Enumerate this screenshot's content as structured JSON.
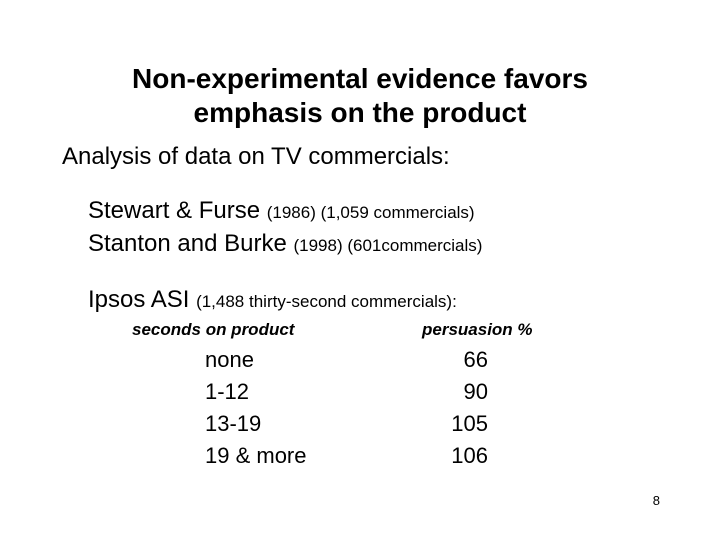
{
  "title": {
    "line1": "Non-experimental evidence favors",
    "line2": "emphasis on the product"
  },
  "subtitle": "Analysis of data on TV commercials:",
  "studies": [
    {
      "name": "Stewart & Furse ",
      "detail": "(1986) (1,059 commercials)"
    },
    {
      "name": "Stanton and Burke ",
      "detail": "(1998) (601commercials)"
    },
    {
      "name": "Ipsos ASI ",
      "detail": "(1,488 thirty-second commercials):"
    }
  ],
  "table": {
    "headers": {
      "seconds": "seconds on product",
      "persuasion": "persuasion %"
    },
    "rows": [
      {
        "seconds": "none",
        "persuasion": "66"
      },
      {
        "seconds": "1-12",
        "persuasion": "90"
      },
      {
        "seconds": "13-19",
        "persuasion": "105"
      },
      {
        "seconds": "19 & more",
        "persuasion": "106"
      }
    ]
  },
  "page_number": "8"
}
